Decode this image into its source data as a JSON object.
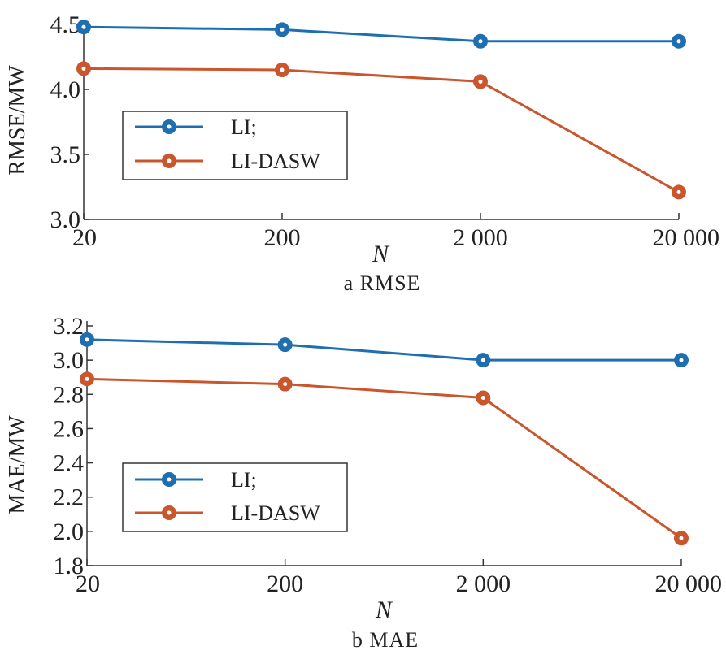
{
  "chart_data": [
    {
      "type": "line",
      "caption": "a  RMSE",
      "xlabel": "N",
      "ylabel": "RMSE/MW",
      "categories": [
        "20",
        "200",
        "2 000",
        "20 000"
      ],
      "ylim": [
        3.0,
        4.5
      ],
      "yticks": [
        "3.0",
        "3.5",
        "4.0",
        "4.5"
      ],
      "yticks_values": [
        3.0,
        3.5,
        4.0,
        4.5
      ],
      "grid": false,
      "legend_position": "left",
      "series": [
        {
          "name": "LI;",
          "color": "#1f6fb0",
          "values": [
            4.48,
            4.46,
            4.37,
            4.37
          ]
        },
        {
          "name": "LI-DASW",
          "color": "#c9562c",
          "values": [
            4.16,
            4.15,
            4.06,
            3.21
          ]
        }
      ]
    },
    {
      "type": "line",
      "caption": "b  MAE",
      "xlabel": "N",
      "ylabel": "MAE/MW",
      "categories": [
        "20",
        "200",
        "2 000",
        "20 000"
      ],
      "ylim": [
        1.8,
        3.2
      ],
      "yticks": [
        "1.8",
        "2.0",
        "2.2",
        "2.4",
        "2.6",
        "2.8",
        "3.0",
        "3.2"
      ],
      "yticks_values": [
        1.8,
        2.0,
        2.2,
        2.4,
        2.6,
        2.8,
        3.0,
        3.2
      ],
      "grid": false,
      "legend_position": "left",
      "series": [
        {
          "name": "LI;",
          "color": "#1f6fb0",
          "values": [
            3.12,
            3.09,
            3.0,
            3.0
          ]
        },
        {
          "name": "LI-DASW",
          "color": "#c9562c",
          "values": [
            2.89,
            2.86,
            2.78,
            1.96
          ]
        }
      ]
    }
  ]
}
